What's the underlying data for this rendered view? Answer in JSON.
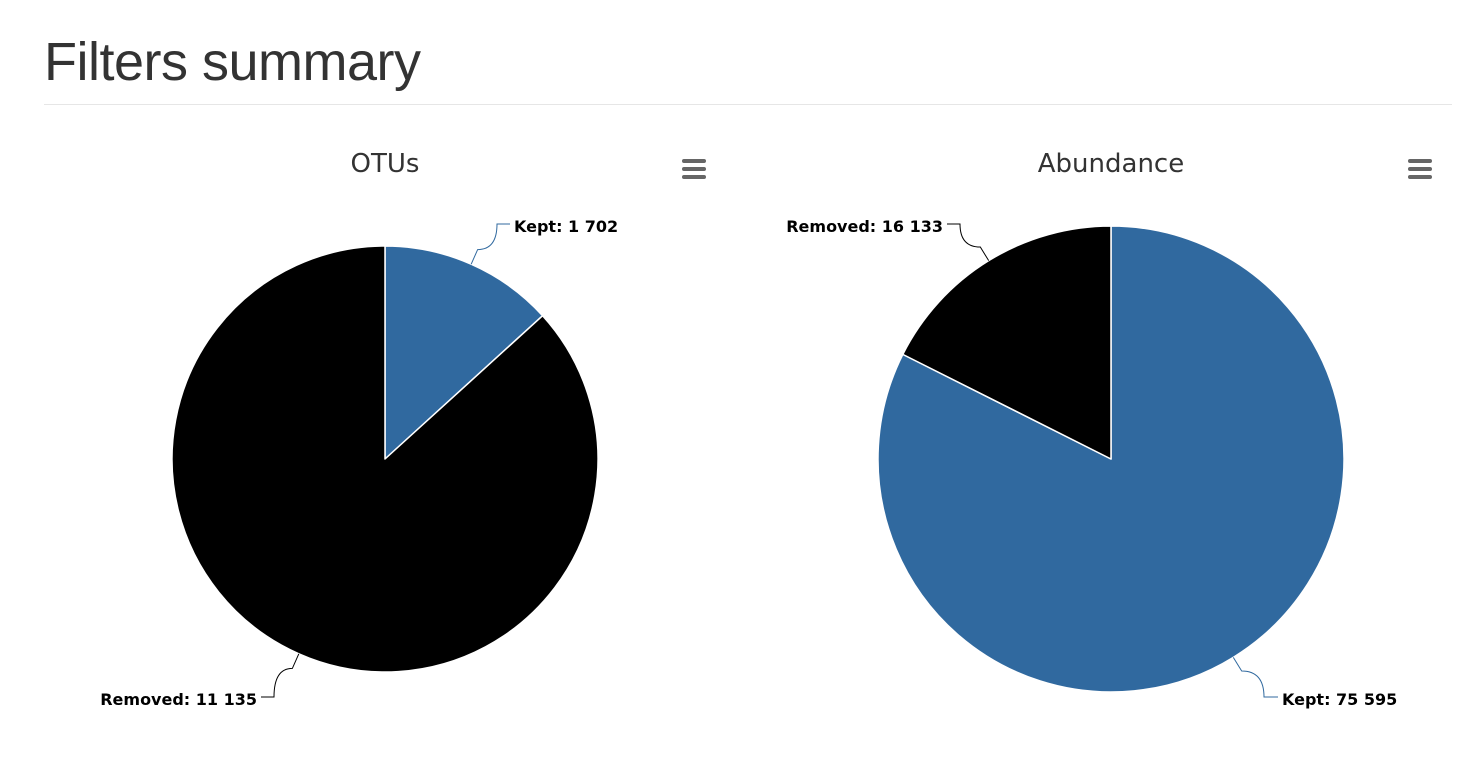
{
  "page": {
    "title": "Filters summary"
  },
  "colors": {
    "kept": "#30699f",
    "removed": "#000000",
    "text": "#333333",
    "menu_icon": "#666666",
    "slice_border": "#ffffff",
    "divider": "#e6e6e6"
  },
  "chart_data": [
    {
      "type": "pie",
      "title": "OTUs",
      "slices": [
        {
          "name": "Kept",
          "value": 1702,
          "label": "Kept: 1 702",
          "color": "#30699f"
        },
        {
          "name": "Removed",
          "value": 11135,
          "label": "Removed: 11 135",
          "color": "#000000"
        }
      ],
      "legend": false,
      "menu_icon": "hamburger-menu-icon"
    },
    {
      "type": "pie",
      "title": "Abundance",
      "slices": [
        {
          "name": "Kept",
          "value": 75595,
          "label": "Kept: 75 595",
          "color": "#30699f"
        },
        {
          "name": "Removed",
          "value": 16133,
          "label": "Removed: 16 133",
          "color": "#000000"
        }
      ],
      "legend": false,
      "menu_icon": "hamburger-menu-icon"
    }
  ]
}
